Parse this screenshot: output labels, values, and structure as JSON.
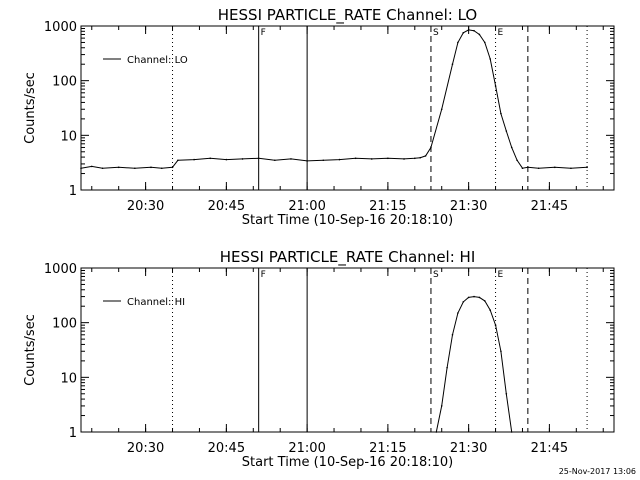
{
  "footer": {
    "timestamp": "25-Nov-2017 13:06"
  },
  "chart_data": [
    {
      "type": "line",
      "title": "HESSI PARTICLE_RATE Channel: LO",
      "xlabel": "Start Time (10-Sep-16 20:18:10)",
      "ylabel": "Counts/sec",
      "xlim": [
        "20:18",
        "21:57"
      ],
      "ylim": [
        1,
        1000
      ],
      "yscale": "log",
      "xticks": [
        "20:30",
        "20:45",
        "21:00",
        "21:15",
        "21:30",
        "21:45"
      ],
      "yticks": [
        "1",
        "10",
        "100",
        "1000"
      ],
      "legend": {
        "position": "top-left",
        "entries": [
          "Channel: LO"
        ]
      },
      "markers": [
        {
          "time": "20:35",
          "style": "dotted",
          "label": ""
        },
        {
          "time": "20:51",
          "style": "solid",
          "label": "F"
        },
        {
          "time": "21:00",
          "style": "solid",
          "label": ""
        },
        {
          "time": "21:23",
          "style": "dashed",
          "label": "S"
        },
        {
          "time": "21:35",
          "style": "dotted",
          "label": "E"
        },
        {
          "time": "21:41",
          "style": "dashed",
          "label": ""
        },
        {
          "time": "21:52",
          "style": "dotted",
          "label": ""
        }
      ],
      "series": [
        {
          "name": "Channel: LO",
          "x": [
            "20:18",
            "20:20",
            "20:22",
            "20:25",
            "20:28",
            "20:31",
            "20:33",
            "20:35",
            "20:36",
            "20:39",
            "20:42",
            "20:45",
            "20:48",
            "20:51",
            "20:54",
            "20:57",
            "21:00",
            "21:03",
            "21:06",
            "21:09",
            "21:12",
            "21:15",
            "21:18",
            "21:20",
            "21:21",
            "21:22",
            "21:23",
            "21:25",
            "21:27",
            "21:28",
            "21:29",
            "21:30",
            "21:31",
            "21:32",
            "21:33",
            "21:34",
            "21:35",
            "21:36",
            "21:37",
            "21:38",
            "21:39",
            "21:40",
            "21:41",
            "21:43",
            "21:46",
            "21:49",
            "21:52"
          ],
          "y": [
            2.5,
            2.7,
            2.5,
            2.6,
            2.5,
            2.6,
            2.5,
            2.6,
            3.5,
            3.6,
            3.8,
            3.6,
            3.7,
            3.8,
            3.5,
            3.7,
            3.4,
            3.5,
            3.6,
            3.8,
            3.7,
            3.8,
            3.7,
            3.8,
            3.9,
            4.2,
            6,
            30,
            200,
            500,
            750,
            850,
            820,
            700,
            500,
            250,
            80,
            25,
            12,
            6,
            3.5,
            2.5,
            2.6,
            2.5,
            2.6,
            2.5,
            2.6
          ]
        }
      ]
    },
    {
      "type": "line",
      "title": "HESSI PARTICLE_RATE Channel: HI",
      "xlabel": "Start Time (10-Sep-16 20:18:10)",
      "ylabel": "Counts/sec",
      "xlim": [
        "20:18",
        "21:57"
      ],
      "ylim": [
        1,
        1000
      ],
      "yscale": "log",
      "xticks": [
        "20:30",
        "20:45",
        "21:00",
        "21:15",
        "21:30",
        "21:45"
      ],
      "yticks": [
        "1",
        "10",
        "100",
        "1000"
      ],
      "legend": {
        "position": "top-left",
        "entries": [
          "Channel: HI"
        ]
      },
      "markers": [
        {
          "time": "20:35",
          "style": "dotted",
          "label": ""
        },
        {
          "time": "20:51",
          "style": "solid",
          "label": "F"
        },
        {
          "time": "21:00",
          "style": "solid",
          "label": ""
        },
        {
          "time": "21:23",
          "style": "dashed",
          "label": "S"
        },
        {
          "time": "21:35",
          "style": "dotted",
          "label": "E"
        },
        {
          "time": "21:41",
          "style": "dashed",
          "label": ""
        },
        {
          "time": "21:52",
          "style": "dotted",
          "label": ""
        }
      ],
      "series": [
        {
          "name": "Channel: HI",
          "x": [
            "21:24",
            "21:25",
            "21:26",
            "21:27",
            "21:28",
            "21:29",
            "21:30",
            "21:31",
            "21:32",
            "21:33",
            "21:34",
            "21:35",
            "21:36",
            "21:37",
            "21:38"
          ],
          "y": [
            1,
            3,
            15,
            60,
            150,
            240,
            290,
            300,
            290,
            250,
            170,
            90,
            30,
            5,
            1
          ]
        }
      ]
    }
  ]
}
